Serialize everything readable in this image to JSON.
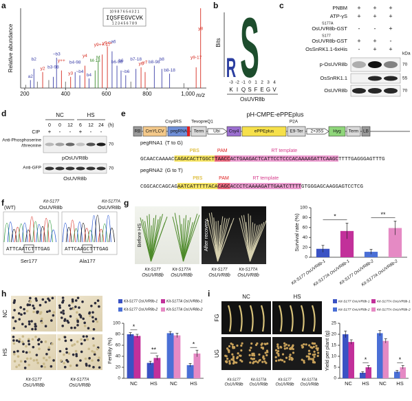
{
  "panel_labels": [
    "a",
    "b",
    "c",
    "d",
    "e",
    "f",
    "g",
    "h",
    "i"
  ],
  "gene": "OsUVR8b",
  "wt_sup": "Kit-S177",
  "mut_sup": "Kit-S177A",
  "chart_data": [
    {
      "type": "spectrum",
      "ylabel": "Relative abundance",
      "xlabel": "m/z",
      "color": "#666666",
      "x": [
        205,
        228,
        245,
        262,
        288,
        318,
        340,
        356,
        380,
        400,
        425,
        447,
        470,
        495,
        515,
        545,
        560,
        580,
        605,
        628,
        652,
        672,
        695,
        720,
        745,
        770,
        790,
        835,
        872,
        910,
        980,
        1040,
        1062
      ],
      "values": [
        4,
        10,
        24,
        8,
        20,
        10,
        14,
        38,
        22,
        8,
        14,
        20,
        16,
        28,
        12,
        22,
        34,
        42,
        52,
        46,
        28,
        22,
        16,
        8,
        24,
        26,
        20,
        28,
        24,
        18,
        6,
        26,
        100
      ],
      "peak_labels": [
        null,
        "a2",
        "b2",
        null,
        "y2",
        null,
        "b3-98",
        "~b3",
        "y++",
        null,
        "y3",
        "b4-98",
        "~b4",
        "y4",
        "b4",
        "M-18",
        "M",
        "y9++-17",
        "y9++",
        "~a6",
        "b6-98",
        "b6",
        "~b6",
        null,
        "b7-18",
        "y6",
        "y7",
        "b8-98",
        "b8",
        "b8-18",
        null,
        "y9-17",
        "y8"
      ],
      "peak_colors": [
        null,
        "#3b3fa8",
        "#3b3fa8",
        null,
        "#d62a1f",
        null,
        "#3b3fa8",
        "#3b3fa8",
        "#d62a1f",
        null,
        "#d62a1f",
        "#3b3fa8",
        "#3b3fa8",
        "#d62a1f",
        "#3b3fa8",
        "#3a8a2a",
        "#3a8a2a",
        "#d62a1f",
        "#d62a1f",
        "#3b3fa8",
        "#3b3fa8",
        "#3b3fa8",
        "#3b3fa8",
        null,
        "#3b3fa8",
        "#d62a1f",
        "#d62a1f",
        "#3b3fa8",
        "#3b3fa8",
        "#3b3fa8",
        null,
        "#d62a1f",
        "#d62a1f"
      ],
      "xlim": [
        180,
        1090
      ],
      "xticks": [
        200,
        400,
        600,
        800,
        {
          "value": 1000,
          "label": "1,000"
        }
      ],
      "ylim": [
        0,
        100
      ],
      "inset": {
        "top_numbers": "10 9 8 7 6 5 4 3 2 1",
        "sequence": "IQSFEGVCVK",
        "bottom_numbers": "1 2 3 4 5 6 7 8 9"
      }
    },
    {
      "type": "bar",
      "ylabel": "Survival rate (%)",
      "categories": [
        "Kit-S177 OsUVR8b-1",
        "Kit-S177A OsUVR8b-1",
        "Kit-S177 OsUVR8b-2",
        "Kit-S177A OsUVR8b-2"
      ],
      "values": [
        17,
        53,
        11,
        59
      ],
      "errors": [
        7,
        16,
        5,
        14
      ],
      "colors": [
        "#3a52c4",
        "#c2309a",
        "#4a6fd6",
        "#e58ac4"
      ],
      "ylim": [
        0,
        100
      ],
      "yticks": [
        0,
        20,
        40,
        60,
        80,
        100
      ],
      "significance": [
        "*",
        "**"
      ]
    },
    {
      "type": "bar",
      "ylabel": "Fertility (%)",
      "categories": [
        "NC",
        "HS",
        "NC",
        "HS"
      ],
      "series": [
        {
          "name": "Kit-S177 OsUVR8b-1",
          "color": "#3a52c4",
          "values": [
            80,
            28,
            null,
            null
          ],
          "errors": [
            3,
            3,
            null,
            null
          ]
        },
        {
          "name": "Kit-S177A OsUVR8b-1",
          "color": "#c2309a",
          "values": [
            77,
            37,
            null,
            null
          ],
          "errors": [
            3,
            4,
            null,
            null
          ]
        },
        {
          "name": "Kit-S177 OsUVR8b-2",
          "color": "#4a6fd6",
          "values": [
            null,
            null,
            82,
            24
          ],
          "errors": [
            null,
            null,
            3,
            3
          ]
        },
        {
          "name": "Kit-S177A OsUVR8b-2",
          "color": "#e58ac4",
          "values": [
            null,
            null,
            78,
            45
          ],
          "errors": [
            null,
            null,
            4,
            6
          ]
        }
      ],
      "ylim": [
        0,
        100
      ],
      "yticks": [
        0,
        20,
        40,
        60,
        80,
        100
      ],
      "significance": [
        "*",
        "**",
        null,
        "*"
      ],
      "photo_rows": [
        "NC",
        "HS"
      ]
    },
    {
      "type": "bar",
      "ylabel": "Yield per plant (g)",
      "categories": [
        "NC",
        "HS",
        "NC",
        "HS"
      ],
      "series": [
        {
          "name": "Kit-S177 OsUVR8b-1",
          "color": "#3a52c4",
          "values": [
            20,
            2.5,
            null,
            null
          ],
          "errors": [
            1.5,
            0.5,
            null,
            null
          ]
        },
        {
          "name": "Kit-S177A OsUVR8b-1",
          "color": "#c2309a",
          "values": [
            16.5,
            5,
            null,
            null
          ],
          "errors": [
            1,
            0.8,
            null,
            null
          ]
        },
        {
          "name": "Kit-S177 OsUVR8b-2",
          "color": "#4a6fd6",
          "values": [
            null,
            null,
            20.5,
            3
          ],
          "errors": [
            null,
            null,
            1.2,
            0.6
          ]
        },
        {
          "name": "Kit-S177A OsUVR8b-2",
          "color": "#e58ac4",
          "values": [
            null,
            null,
            17,
            5
          ],
          "errors": [
            null,
            null,
            1,
            0.8
          ]
        }
      ],
      "ylim": [
        0,
        25
      ],
      "yticks": [
        0,
        5,
        10,
        15,
        20,
        25
      ],
      "significance": [
        null,
        "*",
        null,
        "*"
      ],
      "photo_cols": [
        "NC",
        "HS"
      ],
      "photo_rows": [
        "FG",
        "UG"
      ]
    }
  ],
  "panel_b": {
    "ylabel": "Bits",
    "logo_letters": [
      {
        "letter": "R",
        "color": "#2b3ea0"
      },
      {
        "letter": "S",
        "color": "#1d4d2d"
      }
    ],
    "positions": [
      -3,
      -2,
      -1,
      0,
      1,
      2,
      3,
      4
    ],
    "residues": [
      "K",
      "I",
      "Q",
      "S",
      "F",
      "E",
      "G",
      "V"
    ]
  },
  "panel_c": {
    "rows": [
      {
        "label": "PNBM",
        "signs": [
          "+",
          "+",
          "+"
        ]
      },
      {
        "label": "ATP-γS",
        "signs": [
          "+",
          "+",
          "+"
        ]
      },
      {
        "label": "OsUVR8b-GST",
        "sup": "S177A",
        "signs": [
          "-",
          "-",
          "+"
        ]
      },
      {
        "label": "OsUVR8b-GST",
        "sup": "S177",
        "signs": [
          "+",
          "+",
          "-"
        ]
      },
      {
        "label": "OsSnRK1.1-6xHis",
        "signs": [
          "-",
          "+",
          "+"
        ]
      }
    ],
    "blots": [
      {
        "label": "p-OsUVR8b",
        "kda": "70"
      },
      {
        "label": "OsSnRK1.1",
        "kda": "55"
      },
      {
        "label": "OsUVR8b",
        "kda": "70"
      }
    ],
    "kda_unit": "kDa"
  },
  "panel_d": {
    "groups": [
      "NC",
      "HS"
    ],
    "times": [
      "0",
      "0",
      "12",
      "6",
      "12",
      "24"
    ],
    "time_unit": "(h)",
    "cip_label": "CIP",
    "cip": [
      "+",
      "-",
      "-",
      "+",
      "-",
      "-"
    ],
    "blots": [
      {
        "antibody": [
          "Anti-Phosphoserine",
          "/threonine"
        ],
        "target": "pOsUVR8b",
        "kda": "70"
      },
      {
        "antibody": [
          "Anti-GFP"
        ],
        "target": "OsUVR8b",
        "kda": "70"
      }
    ]
  },
  "panel_e": {
    "title": "pH-CMPE-ePPEplus",
    "top_labels": [
      "Csy4RS",
      "TevopreQ1",
      "P2A"
    ],
    "elements": [
      {
        "label": "RB",
        "color": "#9a9a9a"
      },
      {
        "label": "CmYLCV",
        "color": "#f4c98a"
      },
      {
        "label": "pegRNA",
        "color": "#6f8fd8"
      },
      {
        "label": "Term",
        "color": "#d9d9d9"
      },
      {
        "label": "Ubi",
        "color": "#ffffff"
      },
      {
        "label": "Csy4",
        "color": "#9b6fd0"
      },
      {
        "label": "ePPEplus",
        "color": "#f6e04a"
      },
      {
        "label": "E9-Ter",
        "color": "#d9d9d9"
      },
      {
        "label": "2×35S",
        "color": "#ffffff"
      },
      {
        "label": "Hyg",
        "color": "#8fd67a"
      },
      {
        "label": "Term",
        "color": "#d9d9d9"
      },
      {
        "label": "LB",
        "color": "#9a9a9a"
      }
    ],
    "pegrnas": [
      {
        "name": "pegRNA1",
        "change": "(T to G)",
        "parts": [
          {
            "text": "GCAACCAAAAC",
            "color": null
          },
          {
            "text": "CAGACACTTGGCT",
            "color": "#f6e04a",
            "tag": "PBS",
            "tag_color": "#d4a900"
          },
          {
            "text": "TAACC",
            "color": "#e8506a",
            "tag": "PAM",
            "tag_color": "#e02020"
          },
          {
            "text": "ACTGAAGACTCATTCCTCCCACAAAAGATTCAAGC",
            "color": "#e98cc8",
            "tag": "RT template",
            "tag_color": "#d63c8c"
          },
          {
            "text": "TTTTGAGGGAGTTTG",
            "color": null
          }
        ]
      },
      {
        "name": "pegRNA2",
        "change": "(G to T)",
        "parts": [
          {
            "text": "CGGCACCAGCAG",
            "color": null
          },
          {
            "text": "AATCATTTTTACA",
            "color": "#f6e04a",
            "tag": "PBS",
            "tag_color": "#d4a900"
          },
          {
            "text": "CAGC",
            "color": "#e8506a",
            "tag": "PAM",
            "tag_color": "#e02020"
          },
          {
            "text": "ACCCTCAAAAGATTGAATCTTTT",
            "color": "#e98cc8",
            "tag": "RT template",
            "tag_color": "#d63c8c"
          },
          {
            "text": "GTGGGAGCAAGGAGTCCTCG",
            "color": null
          }
        ]
      }
    ]
  },
  "panel_f": {
    "wt": "(WT)",
    "traces": [
      {
        "seq_left": "ATTCAA",
        "seq_mid": "TCT",
        "seq_right": "TTGAG",
        "residue": "Ser177"
      },
      {
        "seq_left": "ATTCAA",
        "seq_mid": "GCT",
        "seq_right": "TTGAG",
        "residue": "Ala177"
      }
    ]
  },
  "panel_g": {
    "photo_titles": [
      "Before HS",
      "After recovery"
    ]
  }
}
